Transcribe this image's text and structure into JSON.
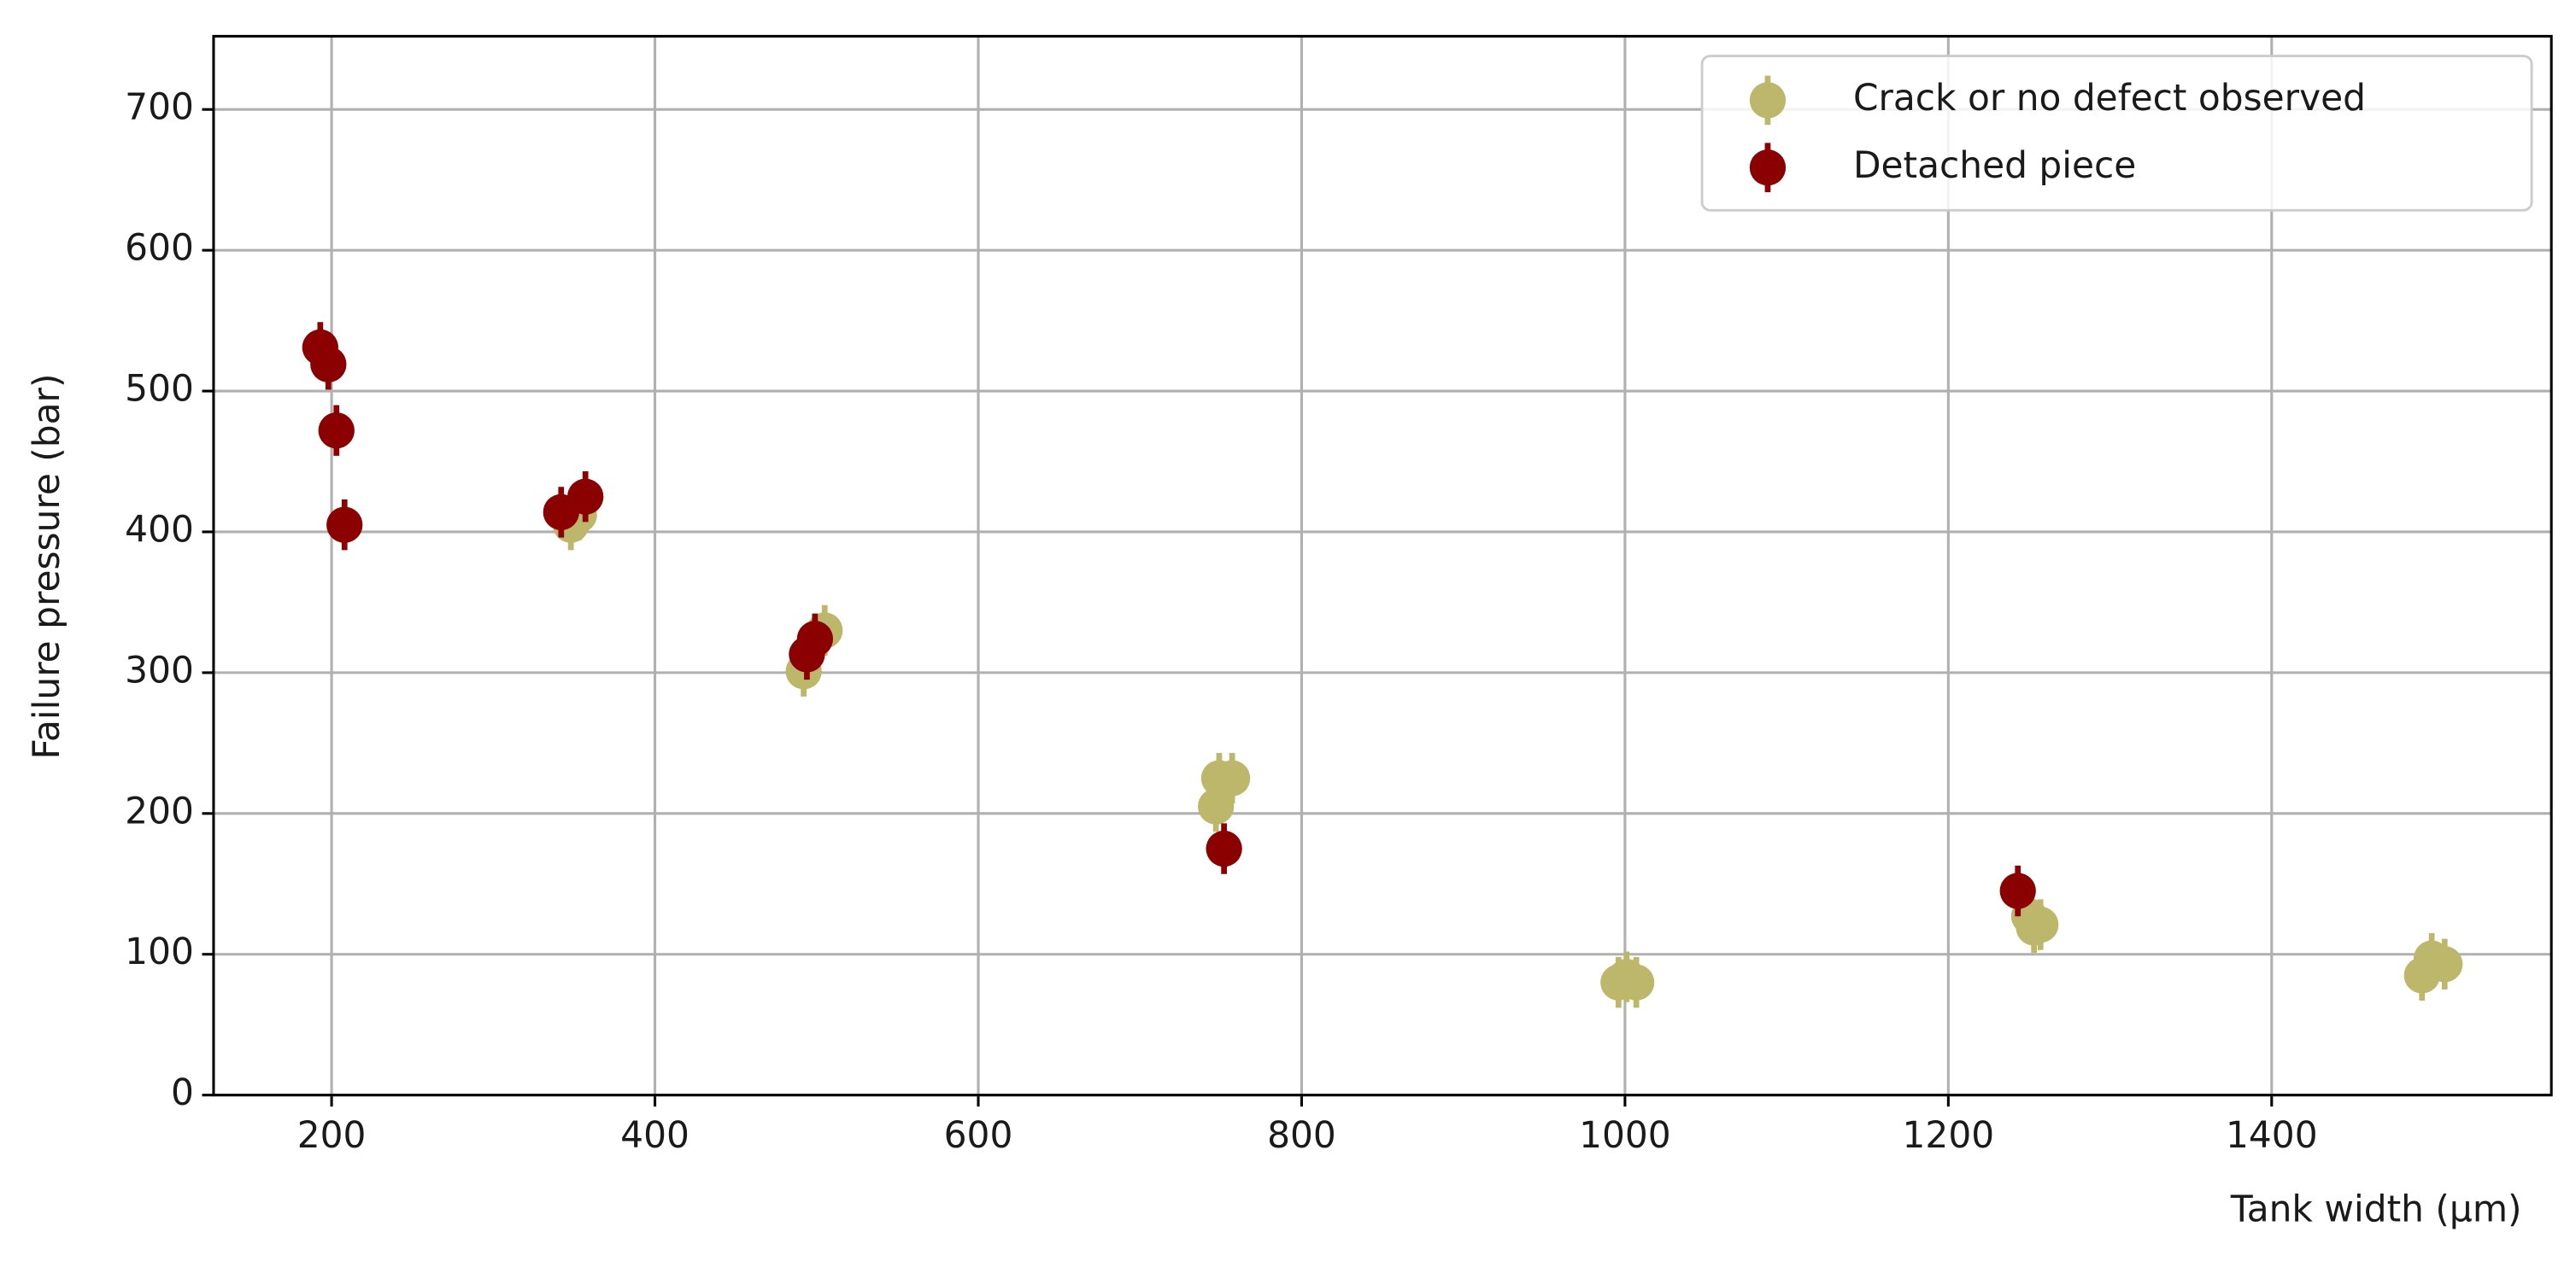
{
  "chart_data": {
    "type": "scatter",
    "x_label": "Tank width (μm)",
    "y_label": "Failure pressure (bar)",
    "xlim": [
      127,
      1573
    ],
    "ylim": [
      0,
      752
    ],
    "xticks": [
      200,
      400,
      600,
      800,
      1000,
      1200,
      1400
    ],
    "yticks": [
      0,
      100,
      200,
      300,
      400,
      500,
      600,
      700
    ],
    "grid": true,
    "legend": "upper right",
    "series": [
      {
        "name": "Crack or no defect observed",
        "color": "#bdb76b",
        "x": [
          348,
          353,
          492,
          505,
          749,
          747,
          757,
          996,
          1001,
          1007,
          1250,
          1257,
          1253,
          1493,
          1499,
          1507
        ],
        "values": [
          405,
          412,
          301,
          330,
          225,
          205,
          225,
          80,
          84,
          80,
          127,
          121,
          119,
          85,
          97,
          93
        ],
        "errors": [
          18,
          18,
          18,
          18,
          18,
          18,
          18,
          18,
          18,
          18,
          18,
          18,
          18,
          18,
          18,
          18
        ]
      },
      {
        "name": "Detached piece",
        "color": "#8b0000",
        "x": [
          193,
          198,
          203,
          208,
          342,
          357,
          494,
          499,
          752,
          1243
        ],
        "values": [
          531,
          519,
          472,
          405,
          414,
          425,
          313,
          324,
          175,
          145
        ],
        "errors": [
          18,
          18,
          18,
          18,
          18,
          18,
          18,
          18,
          18,
          18
        ]
      }
    ]
  }
}
